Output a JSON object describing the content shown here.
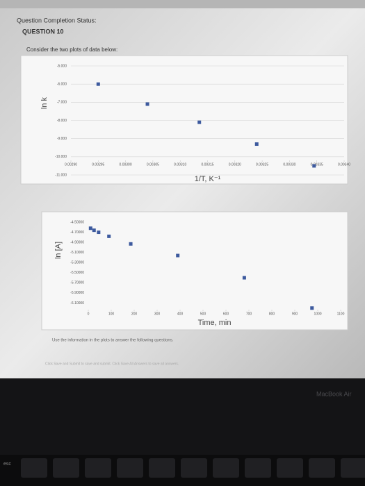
{
  "header": {
    "status": "Question Completion Status:",
    "question": "QUESTION 10",
    "prompt": "Consider the two plots of data below:"
  },
  "chart_data": [
    {
      "type": "scatter",
      "x_label": "1/T, K⁻¹",
      "y_label": "ln k",
      "color": "#3d5a9e",
      "grid": true,
      "x": [
        0.00295,
        0.00304,
        0.003135,
        0.00324,
        0.003345
      ],
      "values": [
        -6.0,
        -7.1,
        -8.1,
        -9.3,
        -10.5
      ],
      "xlim": [
        0.0029,
        0.0034
      ],
      "xticks": [
        {
          "value": 0.0029,
          "label": "0.00290"
        },
        {
          "value": 0.00295,
          "label": "0.00295"
        },
        {
          "value": 0.003,
          "label": "0.00300"
        },
        {
          "value": 0.00305,
          "label": "0.00305"
        },
        {
          "value": 0.0031,
          "label": "0.00310"
        },
        {
          "value": 0.00315,
          "label": "0.00315"
        },
        {
          "value": 0.0032,
          "label": "0.00320"
        },
        {
          "value": 0.00325,
          "label": "0.00325"
        },
        {
          "value": 0.0033,
          "label": "0.00330"
        },
        {
          "value": 0.00335,
          "label": "0.00335"
        },
        {
          "value": 0.0034,
          "label": "0.00340"
        }
      ],
      "ylim": [
        -11,
        -5
      ],
      "yticks": [
        {
          "value": -5,
          "label": "-5.000"
        },
        {
          "value": -6,
          "label": "-6.000"
        },
        {
          "value": -7,
          "label": "-7.000"
        },
        {
          "value": -8,
          "label": "-8.000"
        },
        {
          "value": -9,
          "label": "-9.000"
        },
        {
          "value": -10,
          "label": "-10.000"
        },
        {
          "value": -11,
          "label": "-11.000"
        }
      ]
    },
    {
      "type": "scatter",
      "x_label": "Time, min",
      "y_label": "ln [A]",
      "color": "#3d5a9e",
      "grid": false,
      "x": [
        10,
        25,
        45,
        90,
        185,
        390,
        680,
        975
      ],
      "values": [
        -4.62,
        -4.66,
        -4.7,
        -4.78,
        -4.93,
        -5.16,
        -5.6,
        -6.2
      ],
      "xlim": [
        0,
        1100
      ],
      "xticks": [
        0,
        100,
        200,
        300,
        400,
        500,
        600,
        700,
        800,
        900,
        1000,
        1100
      ],
      "ylim": [
        -6.3,
        -4.5
      ],
      "yticks": [
        {
          "value": -4.5,
          "label": "-4.50000"
        },
        {
          "value": -4.7,
          "label": "-4.70000"
        },
        {
          "value": -4.9,
          "label": "-4.90000"
        },
        {
          "value": -5.1,
          "label": "-5.10000"
        },
        {
          "value": -5.3,
          "label": "-5.30000"
        },
        {
          "value": -5.5,
          "label": "-5.50000"
        },
        {
          "value": -5.7,
          "label": "-5.70000"
        },
        {
          "value": -5.9,
          "label": "-5.90000"
        },
        {
          "value": -6.1,
          "label": "-6.10000"
        }
      ]
    }
  ],
  "footer": {
    "instruction": "Use the information in the plots to answer the following questions.",
    "buttons_note": "Click Save and Submit to save and submit. Click Save All Answers to save all answers.",
    "laptop_label": "MacBook Air",
    "key": "esc"
  }
}
